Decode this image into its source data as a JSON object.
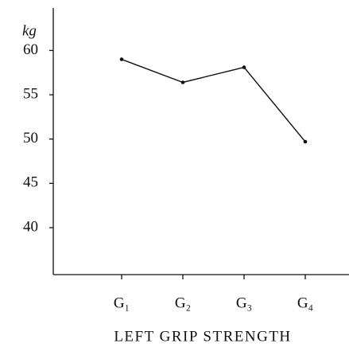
{
  "chart_data": {
    "type": "line",
    "title": "LEFT GRIP STRENGTH",
    "y_label": "kg",
    "categories": [
      "G₁",
      "G₂",
      "G₃",
      "G₄"
    ],
    "values": [
      59.0,
      56.4,
      58.1,
      49.7
    ],
    "color": "#111111",
    "ylim": [
      34.7,
      64.8
    ],
    "yticks": [
      40,
      45,
      50,
      55,
      60
    ],
    "grid": false
  }
}
